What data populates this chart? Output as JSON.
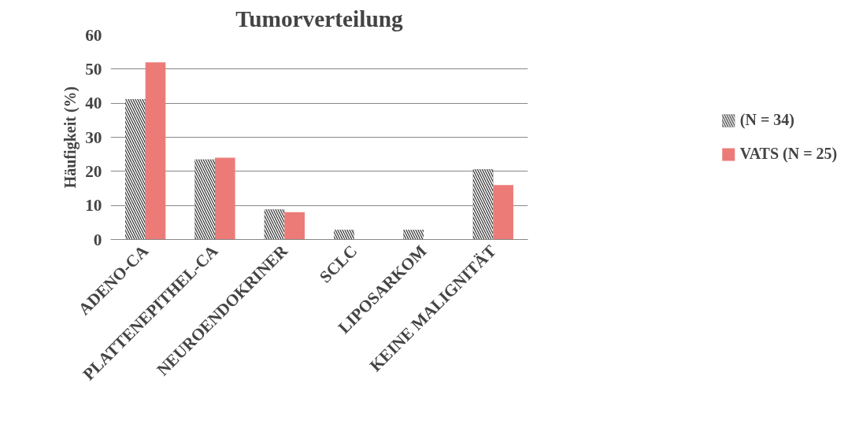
{
  "chart_data": {
    "type": "bar",
    "title": "Tumorverteilung",
    "ylabel": "Häufigkeit (%)",
    "categories": [
      "ADENO-CA",
      "PLATTENEPITHEL-CA",
      "NEUROENDOKRINER",
      "SCLC",
      "LIPOSARKOM",
      "KEINE MALIGNITÄT"
    ],
    "series": [
      {
        "name": "(N = 34)",
        "color": "#333333",
        "values": [
          41.2,
          23.5,
          8.8,
          2.9,
          2.9,
          20.6
        ]
      },
      {
        "name": "VATS (N = 25)",
        "color": "#ec7b78",
        "values": [
          52,
          24,
          8,
          0,
          0,
          16
        ]
      }
    ],
    "ylim": [
      0,
      60
    ],
    "yticks": [
      0,
      10,
      20,
      30,
      40,
      50,
      60
    ],
    "grid": "y",
    "legend": "right"
  }
}
